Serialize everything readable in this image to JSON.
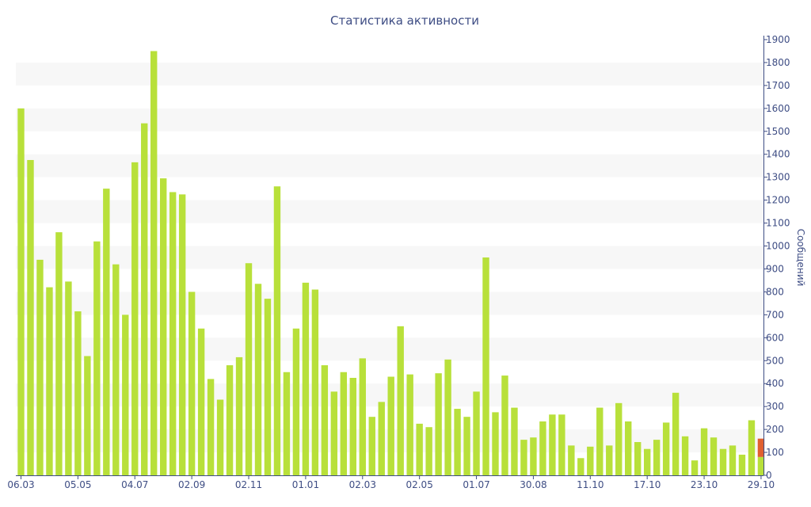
{
  "chart_data": {
    "type": "bar",
    "title": "Статистика активности",
    "ylabel": "Сообщений",
    "xlabel": "",
    "ylim": [
      0,
      1900
    ],
    "y_ticks": [
      0,
      100,
      200,
      300,
      400,
      500,
      600,
      700,
      800,
      900,
      1000,
      1100,
      1200,
      1300,
      1400,
      1500,
      1600,
      1700,
      1800,
      1900
    ],
    "x_tick_labels": [
      {
        "index": 0,
        "label": "06.03"
      },
      {
        "index": 6,
        "label": "05.05"
      },
      {
        "index": 12,
        "label": "04.07"
      },
      {
        "index": 18,
        "label": "02.09"
      },
      {
        "index": 24,
        "label": "02.11"
      },
      {
        "index": 30,
        "label": "01.01"
      },
      {
        "index": 36,
        "label": "02.03"
      },
      {
        "index": 42,
        "label": "02.05"
      },
      {
        "index": 48,
        "label": "01.07"
      },
      {
        "index": 54,
        "label": "30.08"
      },
      {
        "index": 60,
        "label": "11.10"
      },
      {
        "index": 66,
        "label": "17.10"
      },
      {
        "index": 72,
        "label": "23.10"
      },
      {
        "index": 78,
        "label": "29.10"
      }
    ],
    "series": [
      {
        "color": "#b8e03a",
        "values": [
          1600,
          1375,
          940,
          820,
          1060,
          845,
          715,
          520,
          1020,
          1250,
          920,
          700,
          1365,
          1535,
          1850,
          1295,
          1235,
          1225,
          800,
          640,
          420,
          330,
          480,
          515,
          925,
          835,
          770,
          1260,
          450,
          640,
          840,
          810,
          480,
          365,
          450,
          425,
          510,
          255,
          320,
          430,
          650,
          440,
          225,
          210,
          445,
          505,
          290,
          255,
          365,
          950,
          275,
          435,
          295,
          155,
          165,
          235,
          265,
          265,
          130,
          75,
          125,
          295,
          130,
          315,
          235,
          145,
          115,
          155,
          230,
          360,
          170,
          65,
          205,
          165,
          115,
          130,
          90,
          240,
          80
        ]
      },
      {
        "color": "#e06030",
        "values": [
          0,
          0,
          0,
          0,
          0,
          0,
          0,
          0,
          0,
          0,
          0,
          0,
          0,
          0,
          0,
          0,
          0,
          0,
          0,
          0,
          0,
          0,
          0,
          0,
          0,
          0,
          0,
          0,
          0,
          0,
          0,
          0,
          0,
          0,
          0,
          0,
          0,
          0,
          0,
          0,
          0,
          0,
          0,
          0,
          0,
          0,
          0,
          0,
          0,
          0,
          0,
          0,
          0,
          0,
          0,
          0,
          0,
          0,
          0,
          0,
          0,
          0,
          0,
          0,
          0,
          0,
          0,
          0,
          0,
          0,
          0,
          0,
          0,
          0,
          0,
          0,
          0,
          0,
          80
        ]
      }
    ],
    "grid": "alternating-bands",
    "axis_color": "#3e4d84",
    "band_color": "#f7f7f7"
  }
}
